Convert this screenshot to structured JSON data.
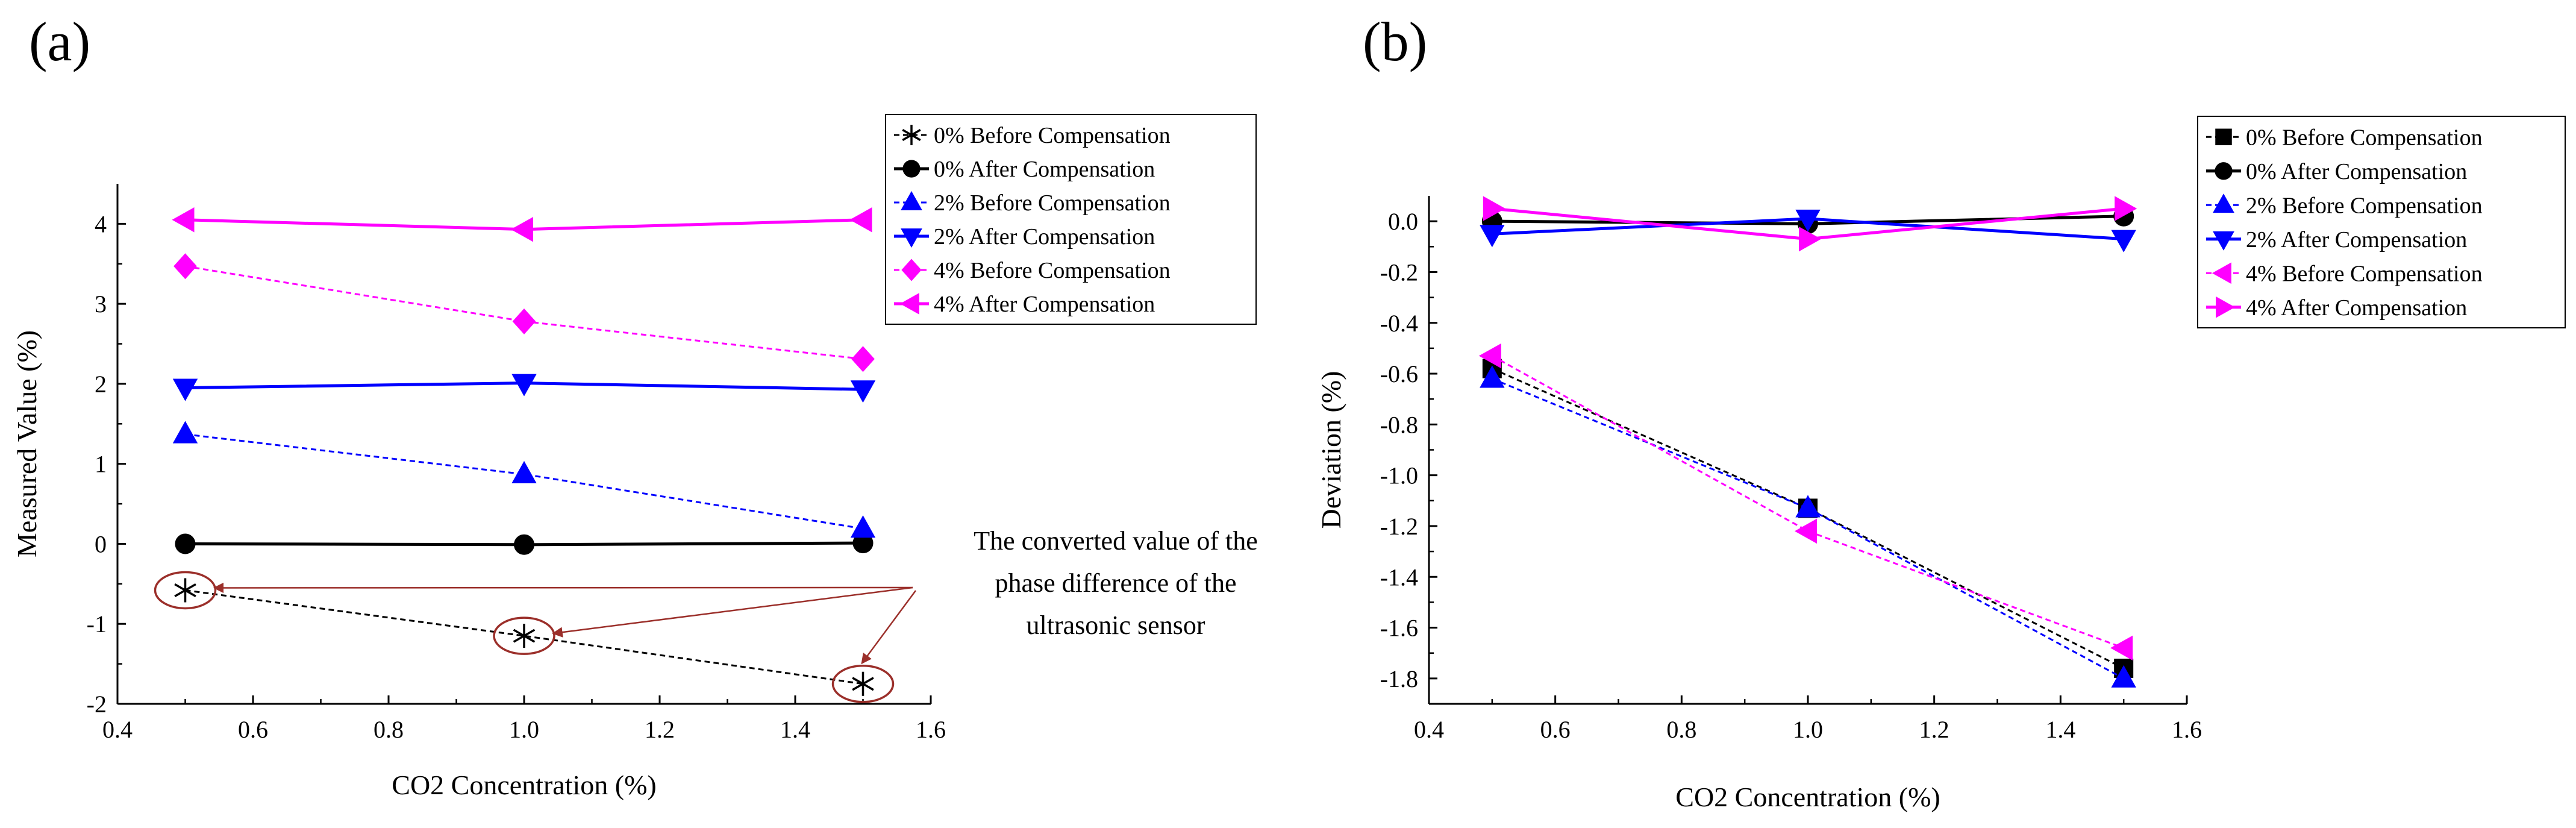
{
  "panels": [
    {
      "label": "(a)",
      "annotation": [
        "The converted value of the",
        "phase difference of the",
        "ultrasonic sensor"
      ]
    },
    {
      "label": "(b)"
    }
  ],
  "chart_data": [
    {
      "type": "line",
      "title": "",
      "xlabel": "CO2 Concentration (%)",
      "ylabel": "Measured Value (%)",
      "xlim": [
        0.4,
        1.6
      ],
      "ylim": [
        -2,
        4.5
      ],
      "xticks": [
        0.4,
        0.6,
        0.8,
        1.0,
        1.2,
        1.4,
        1.6
      ],
      "xtick_labels": [
        "0.4",
        "0.6",
        "0.8",
        "1.0",
        "1.2",
        "1.4",
        "1.6"
      ],
      "yticks": [
        -2,
        -1,
        0,
        1,
        2,
        3,
        4
      ],
      "ytick_labels": [
        "-2",
        "-1",
        "0",
        "1",
        "2",
        "3",
        "4"
      ],
      "grid": false,
      "legend_position": "top-right",
      "x": [
        0.5,
        1.0,
        1.5
      ],
      "series": [
        {
          "name": "0% Before Compensation",
          "values": [
            -0.58,
            -1.15,
            -1.75
          ],
          "color": "#000000",
          "dashed": true,
          "marker": "asterisk"
        },
        {
          "name": "0% After Compensation",
          "values": [
            0.0,
            -0.01,
            0.01
          ],
          "color": "#000000",
          "dashed": false,
          "marker": "circle"
        },
        {
          "name": "2% Before Compensation",
          "values": [
            1.37,
            0.87,
            0.19
          ],
          "color": "#0000ff",
          "dashed": true,
          "marker": "triangle-up"
        },
        {
          "name": "2% After Compensation",
          "values": [
            1.95,
            2.01,
            1.93
          ],
          "color": "#0000ff",
          "dashed": false,
          "marker": "triangle-down"
        },
        {
          "name": "4% Before Compensation",
          "values": [
            3.47,
            2.78,
            2.31
          ],
          "color": "#ff00ff",
          "dashed": true,
          "marker": "diamond"
        },
        {
          "name": "4% After Compensation",
          "values": [
            4.05,
            3.93,
            4.05
          ],
          "color": "#ff00ff",
          "dashed": false,
          "marker": "triangle-left"
        }
      ]
    },
    {
      "type": "line",
      "title": "",
      "xlabel": "CO2 Concentration (%)",
      "ylabel": "Deviation (%)",
      "xlim": [
        0.4,
        1.6
      ],
      "ylim": [
        -1.9,
        0.1
      ],
      "xticks": [
        0.4,
        0.6,
        0.8,
        1.0,
        1.2,
        1.4,
        1.6
      ],
      "xtick_labels": [
        "0.4",
        "0.6",
        "0.8",
        "1.0",
        "1.2",
        "1.4",
        "1.6"
      ],
      "yticks": [
        0.0,
        -0.2,
        -0.4,
        -0.6,
        -0.8,
        -1.0,
        -1.2,
        -1.4,
        -1.6,
        -1.8
      ],
      "ytick_labels": [
        "0.0",
        "-0.2",
        "-0.4",
        "-0.6",
        "-0.8",
        "-1.0",
        "-1.2",
        "-1.4",
        "-1.6",
        "-1.8"
      ],
      "grid": false,
      "legend_position": "top-right",
      "x": [
        0.5,
        1.0,
        1.5
      ],
      "series": [
        {
          "name": "0% Before Compensation",
          "values": [
            -0.58,
            -1.13,
            -1.76
          ],
          "color": "#000000",
          "dashed": true,
          "marker": "square"
        },
        {
          "name": "0% After Compensation",
          "values": [
            0.0,
            -0.01,
            0.02
          ],
          "color": "#000000",
          "dashed": false,
          "marker": "circle"
        },
        {
          "name": "2% Before Compensation",
          "values": [
            -0.62,
            -1.13,
            -1.8
          ],
          "color": "#0000ff",
          "dashed": true,
          "marker": "triangle-up"
        },
        {
          "name": "2% After Compensation",
          "values": [
            -0.05,
            0.01,
            -0.07
          ],
          "color": "#0000ff",
          "dashed": false,
          "marker": "triangle-down"
        },
        {
          "name": "4% Before Compensation",
          "values": [
            -0.53,
            -1.22,
            -1.68
          ],
          "color": "#ff00ff",
          "dashed": true,
          "marker": "triangle-left"
        },
        {
          "name": "4% After Compensation",
          "values": [
            0.05,
            -0.07,
            0.05
          ],
          "color": "#ff00ff",
          "dashed": false,
          "marker": "triangle-right"
        }
      ]
    }
  ]
}
